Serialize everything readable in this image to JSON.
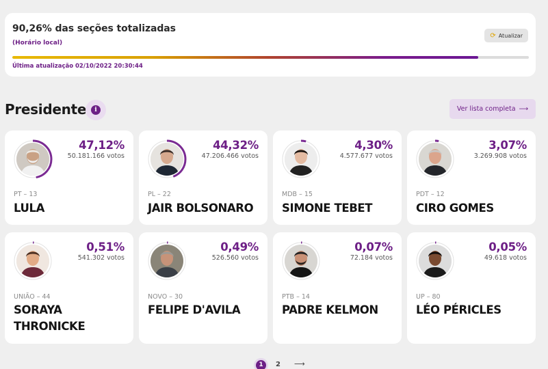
{
  "status": {
    "title": "90,26% das seções totalizadas",
    "subtitle": "(Horário local)",
    "refresh_label": "Atualizar",
    "progress_percent": 90.26,
    "last_update": "Última atualização 02/10/2022 20:30:44",
    "colors": {
      "accent": "#6d1f86",
      "progress_start": "#e8b900",
      "progress_end": "#6b1794"
    }
  },
  "section": {
    "title": "Presidente",
    "full_list_label": "Ver lista completa"
  },
  "candidates": [
    {
      "pct": "47,12%",
      "pct_value": 47.12,
      "votes": "50.181.166 votos",
      "party": "PT – 13",
      "name": "LULA"
    },
    {
      "pct": "44,32%",
      "pct_value": 44.32,
      "votes": "47.206.466 votos",
      "party": "PL – 22",
      "name": "JAIR BOLSONARO"
    },
    {
      "pct": "4,30%",
      "pct_value": 4.3,
      "votes": "4.577.677 votos",
      "party": "MDB – 15",
      "name": "SIMONE TEBET"
    },
    {
      "pct": "3,07%",
      "pct_value": 3.07,
      "votes": "3.269.908 votos",
      "party": "PDT – 12",
      "name": "CIRO GOMES"
    },
    {
      "pct": "0,51%",
      "pct_value": 0.51,
      "votes": "541.302 votos",
      "party": "UNIÃO – 44",
      "name": "SORAYA THRONICKE"
    },
    {
      "pct": "0,49%",
      "pct_value": 0.49,
      "votes": "526.560 votos",
      "party": "NOVO – 30",
      "name": "FELIPE D'AVILA"
    },
    {
      "pct": "0,07%",
      "pct_value": 0.07,
      "votes": "72.184 votos",
      "party": "PTB – 14",
      "name": "PADRE KELMON"
    },
    {
      "pct": "0,05%",
      "pct_value": 0.05,
      "votes": "49.618 votos",
      "party": "UP – 80",
      "name": "LÉO PÉRICLES"
    }
  ],
  "pagination": {
    "pages": [
      "1",
      "2"
    ],
    "current": "1",
    "next_icon": "arrow-right-icon"
  }
}
